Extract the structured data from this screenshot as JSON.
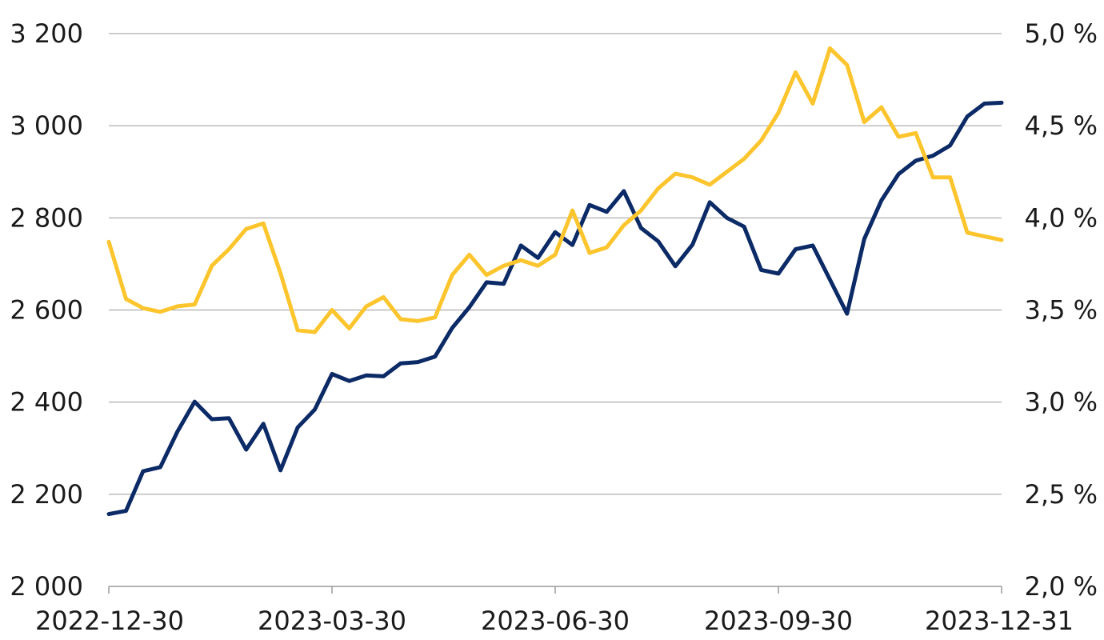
{
  "chart_data": {
    "type": "line",
    "title": "",
    "xlabel": "",
    "ylabel": "",
    "x_tick_labels": [
      "2022-12-30",
      "2023-03-30",
      "2023-06-30",
      "2023-09-30",
      "2023-12-31"
    ],
    "y_left": {
      "range": [
        2000,
        3200
      ],
      "ticks": [
        2000,
        2200,
        2400,
        2600,
        2800,
        3000,
        3200
      ],
      "tick_labels": [
        "2 000",
        "2 200",
        "2 400",
        "2 600",
        "2 800",
        "3 000",
        "3 200"
      ]
    },
    "y_right": {
      "range": [
        2.0,
        5.0
      ],
      "ticks": [
        2.0,
        2.5,
        3.0,
        3.5,
        4.0,
        4.5,
        5.0
      ],
      "tick_labels": [
        "2,0 %",
        "2,5 %",
        "3,0 %",
        "3,5 %",
        "4,0 %",
        "4,5 %",
        "5,0 %"
      ]
    },
    "grid": true,
    "legend": "none",
    "series": [
      {
        "axis": "left",
        "color": "#0b2a66",
        "values": [
          2157,
          2164,
          2250,
          2259,
          2336,
          2401,
          2363,
          2365,
          2297,
          2353,
          2252,
          2345,
          2384,
          2461,
          2446,
          2458,
          2456,
          2484,
          2487,
          2499,
          2561,
          2606,
          2660,
          2657,
          2740,
          2713,
          2769,
          2741,
          2828,
          2813,
          2858,
          2778,
          2749,
          2695,
          2742,
          2834,
          2800,
          2781,
          2687,
          2679,
          2732,
          2740,
          2666,
          2592,
          2754,
          2838,
          2895,
          2924,
          2935,
          2957,
          3020,
          3048,
          3050
        ]
      },
      {
        "axis": "right",
        "color": "#fcc52d",
        "values": [
          3.87,
          3.56,
          3.51,
          3.49,
          3.52,
          3.53,
          3.74,
          3.83,
          3.94,
          3.97,
          3.7,
          3.39,
          3.38,
          3.5,
          3.4,
          3.52,
          3.57,
          3.45,
          3.44,
          3.46,
          3.69,
          3.8,
          3.69,
          3.74,
          3.77,
          3.74,
          3.8,
          4.04,
          3.81,
          3.84,
          3.96,
          4.04,
          4.16,
          4.24,
          4.22,
          4.18,
          4.25,
          4.32,
          4.42,
          4.57,
          4.79,
          4.62,
          4.92,
          4.83,
          4.52,
          4.6,
          4.44,
          4.46,
          4.22,
          4.22,
          3.92,
          3.9,
          3.88
        ]
      }
    ]
  }
}
